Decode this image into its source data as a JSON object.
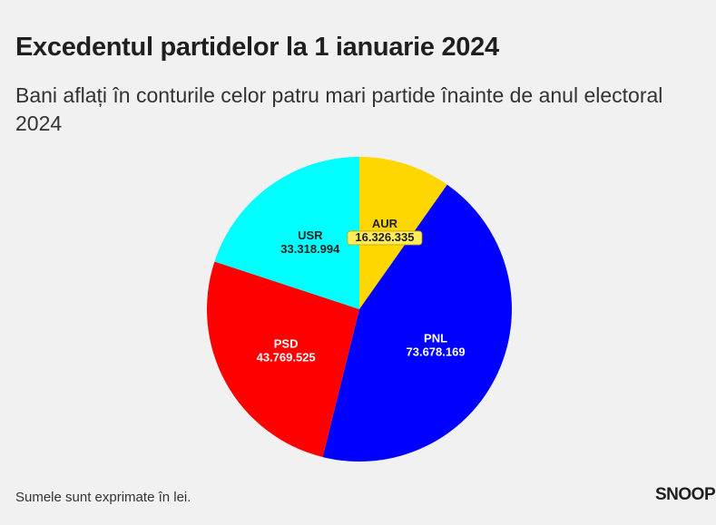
{
  "title": "Excedentul partidelor la 1 ianuarie 2024",
  "subtitle": "Bani aflați în conturile celor patru mari partide înainte de anul electoral 2024",
  "note": "Sumele sunt exprimate în lei.",
  "logo": "SNOOP",
  "chart_data": {
    "type": "pie",
    "title": "Excedentul partidelor la 1 ianuarie 2024",
    "slices": [
      {
        "label": "AUR",
        "value": 16326335,
        "value_label": "16.326.335",
        "color": "#ffd700",
        "text_color": "#1f1f1f",
        "label_highlight": true
      },
      {
        "label": "PNL",
        "value": 73678169,
        "value_label": "73.678.169",
        "color": "#0000ff",
        "text_color": "#ffffff",
        "label_highlight": false
      },
      {
        "label": "PSD",
        "value": 43769525,
        "value_label": "43.769.525",
        "color": "#ff0000",
        "text_color": "#ffffff",
        "label_highlight": false
      },
      {
        "label": "USR",
        "value": 33318994,
        "value_label": "33.318.994",
        "color": "#00ffff",
        "text_color": "#1f1f1f",
        "label_highlight": false
      }
    ]
  }
}
